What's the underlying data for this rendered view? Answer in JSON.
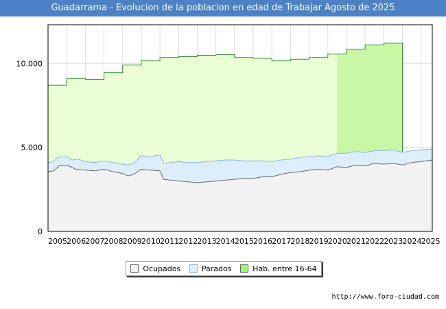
{
  "chart_data": {
    "type": "area",
    "title": "Guadarrama - Evolucion de la poblacion en edad de Trabajar Agosto de 2025",
    "x_tick_labels": [
      "2005",
      "2006",
      "2007",
      "2008",
      "2009",
      "2010",
      "2011",
      "2012",
      "2013",
      "2014",
      "2015",
      "2016",
      "2017",
      "2018",
      "2019",
      "2020",
      "2021",
      "2022",
      "2023",
      "2024",
      "2025"
    ],
    "y_tick_labels": [
      "0",
      "5.000",
      "10.000"
    ],
    "ylim": [
      0,
      12300
    ],
    "xlim": [
      2005,
      2025.6
    ],
    "series": [
      {
        "name": "Hab. entre 16-64",
        "color": "#99ff66",
        "fill": "#eaffd5",
        "years": [
          2005,
          2006,
          2007,
          2008,
          2009,
          2010,
          2011,
          2012,
          2013,
          2014,
          2015,
          2016,
          2017,
          2018,
          2019,
          2020,
          2021,
          2022,
          2023
        ],
        "values": [
          8700,
          9100,
          9050,
          9450,
          9900,
          10150,
          10350,
          10400,
          10480,
          10520,
          10350,
          10300,
          10150,
          10250,
          10350,
          10550,
          10850,
          11100,
          11200
        ]
      },
      {
        "name": "Parados",
        "color": "#8ab4e8",
        "fill": "#ddeefb",
        "points": [
          [
            2005,
            4100
          ],
          [
            2005.3,
            4150
          ],
          [
            2005.5,
            4400
          ],
          [
            2006,
            4450
          ],
          [
            2006.3,
            4250
          ],
          [
            2006.6,
            4300
          ],
          [
            2007,
            4150
          ],
          [
            2007.5,
            4100
          ],
          [
            2008,
            4200
          ],
          [
            2008.5,
            4100
          ],
          [
            2009,
            4000
          ],
          [
            2009.3,
            3950
          ],
          [
            2009.6,
            4050
          ],
          [
            2010,
            4500
          ],
          [
            2010.5,
            4450
          ],
          [
            2011,
            4550
          ],
          [
            2011.2,
            4050
          ],
          [
            2011.6,
            4100
          ],
          [
            2012,
            4150
          ],
          [
            2012.5,
            4100
          ],
          [
            2013,
            4100
          ],
          [
            2013.5,
            4150
          ],
          [
            2014,
            4200
          ],
          [
            2014.5,
            4250
          ],
          [
            2015,
            4250
          ],
          [
            2015.5,
            4200
          ],
          [
            2016,
            4200
          ],
          [
            2016.5,
            4200
          ],
          [
            2017,
            4150
          ],
          [
            2017.5,
            4250
          ],
          [
            2018,
            4300
          ],
          [
            2018.5,
            4400
          ],
          [
            2019,
            4450
          ],
          [
            2019.5,
            4500
          ],
          [
            2020,
            4450
          ],
          [
            2020.5,
            4650
          ],
          [
            2021,
            4650
          ],
          [
            2021.5,
            4750
          ],
          [
            2022,
            4700
          ],
          [
            2022.5,
            4800
          ],
          [
            2023,
            4800
          ],
          [
            2023.5,
            4850
          ],
          [
            2024,
            4700
          ],
          [
            2024.5,
            4800
          ],
          [
            2025,
            4850
          ],
          [
            2025.6,
            4900
          ]
        ]
      },
      {
        "name": "Ocupados",
        "color": "#666666",
        "fill": "#f2f2f2",
        "points": [
          [
            2005,
            3550
          ],
          [
            2005.3,
            3600
          ],
          [
            2005.6,
            3900
          ],
          [
            2006,
            3950
          ],
          [
            2006.5,
            3700
          ],
          [
            2007,
            3650
          ],
          [
            2007.5,
            3600
          ],
          [
            2008,
            3700
          ],
          [
            2008.5,
            3550
          ],
          [
            2009,
            3450
          ],
          [
            2009.3,
            3300
          ],
          [
            2009.6,
            3400
          ],
          [
            2010,
            3700
          ],
          [
            2010.5,
            3650
          ],
          [
            2011,
            3600
          ],
          [
            2011.2,
            3100
          ],
          [
            2011.6,
            3050
          ],
          [
            2012,
            3000
          ],
          [
            2012.5,
            2950
          ],
          [
            2013,
            2900
          ],
          [
            2013.5,
            2950
          ],
          [
            2014,
            3000
          ],
          [
            2014.5,
            3050
          ],
          [
            2015,
            3100
          ],
          [
            2015.5,
            3150
          ],
          [
            2016,
            3150
          ],
          [
            2016.5,
            3250
          ],
          [
            2017,
            3250
          ],
          [
            2017.5,
            3400
          ],
          [
            2018,
            3500
          ],
          [
            2018.5,
            3550
          ],
          [
            2019,
            3650
          ],
          [
            2019.5,
            3700
          ],
          [
            2020,
            3650
          ],
          [
            2020.5,
            3850
          ],
          [
            2021,
            3800
          ],
          [
            2021.5,
            3950
          ],
          [
            2022,
            3900
          ],
          [
            2022.5,
            4050
          ],
          [
            2023,
            4000
          ],
          [
            2023.5,
            4050
          ],
          [
            2024,
            3950
          ],
          [
            2024.5,
            4100
          ],
          [
            2025,
            4150
          ],
          [
            2025.6,
            4250
          ]
        ]
      }
    ],
    "legend": [
      "Ocupados",
      "Parados",
      "Hab. entre 16-64"
    ],
    "grid": true
  },
  "footer": {
    "source": "http://www.foro-ciudad.com"
  }
}
